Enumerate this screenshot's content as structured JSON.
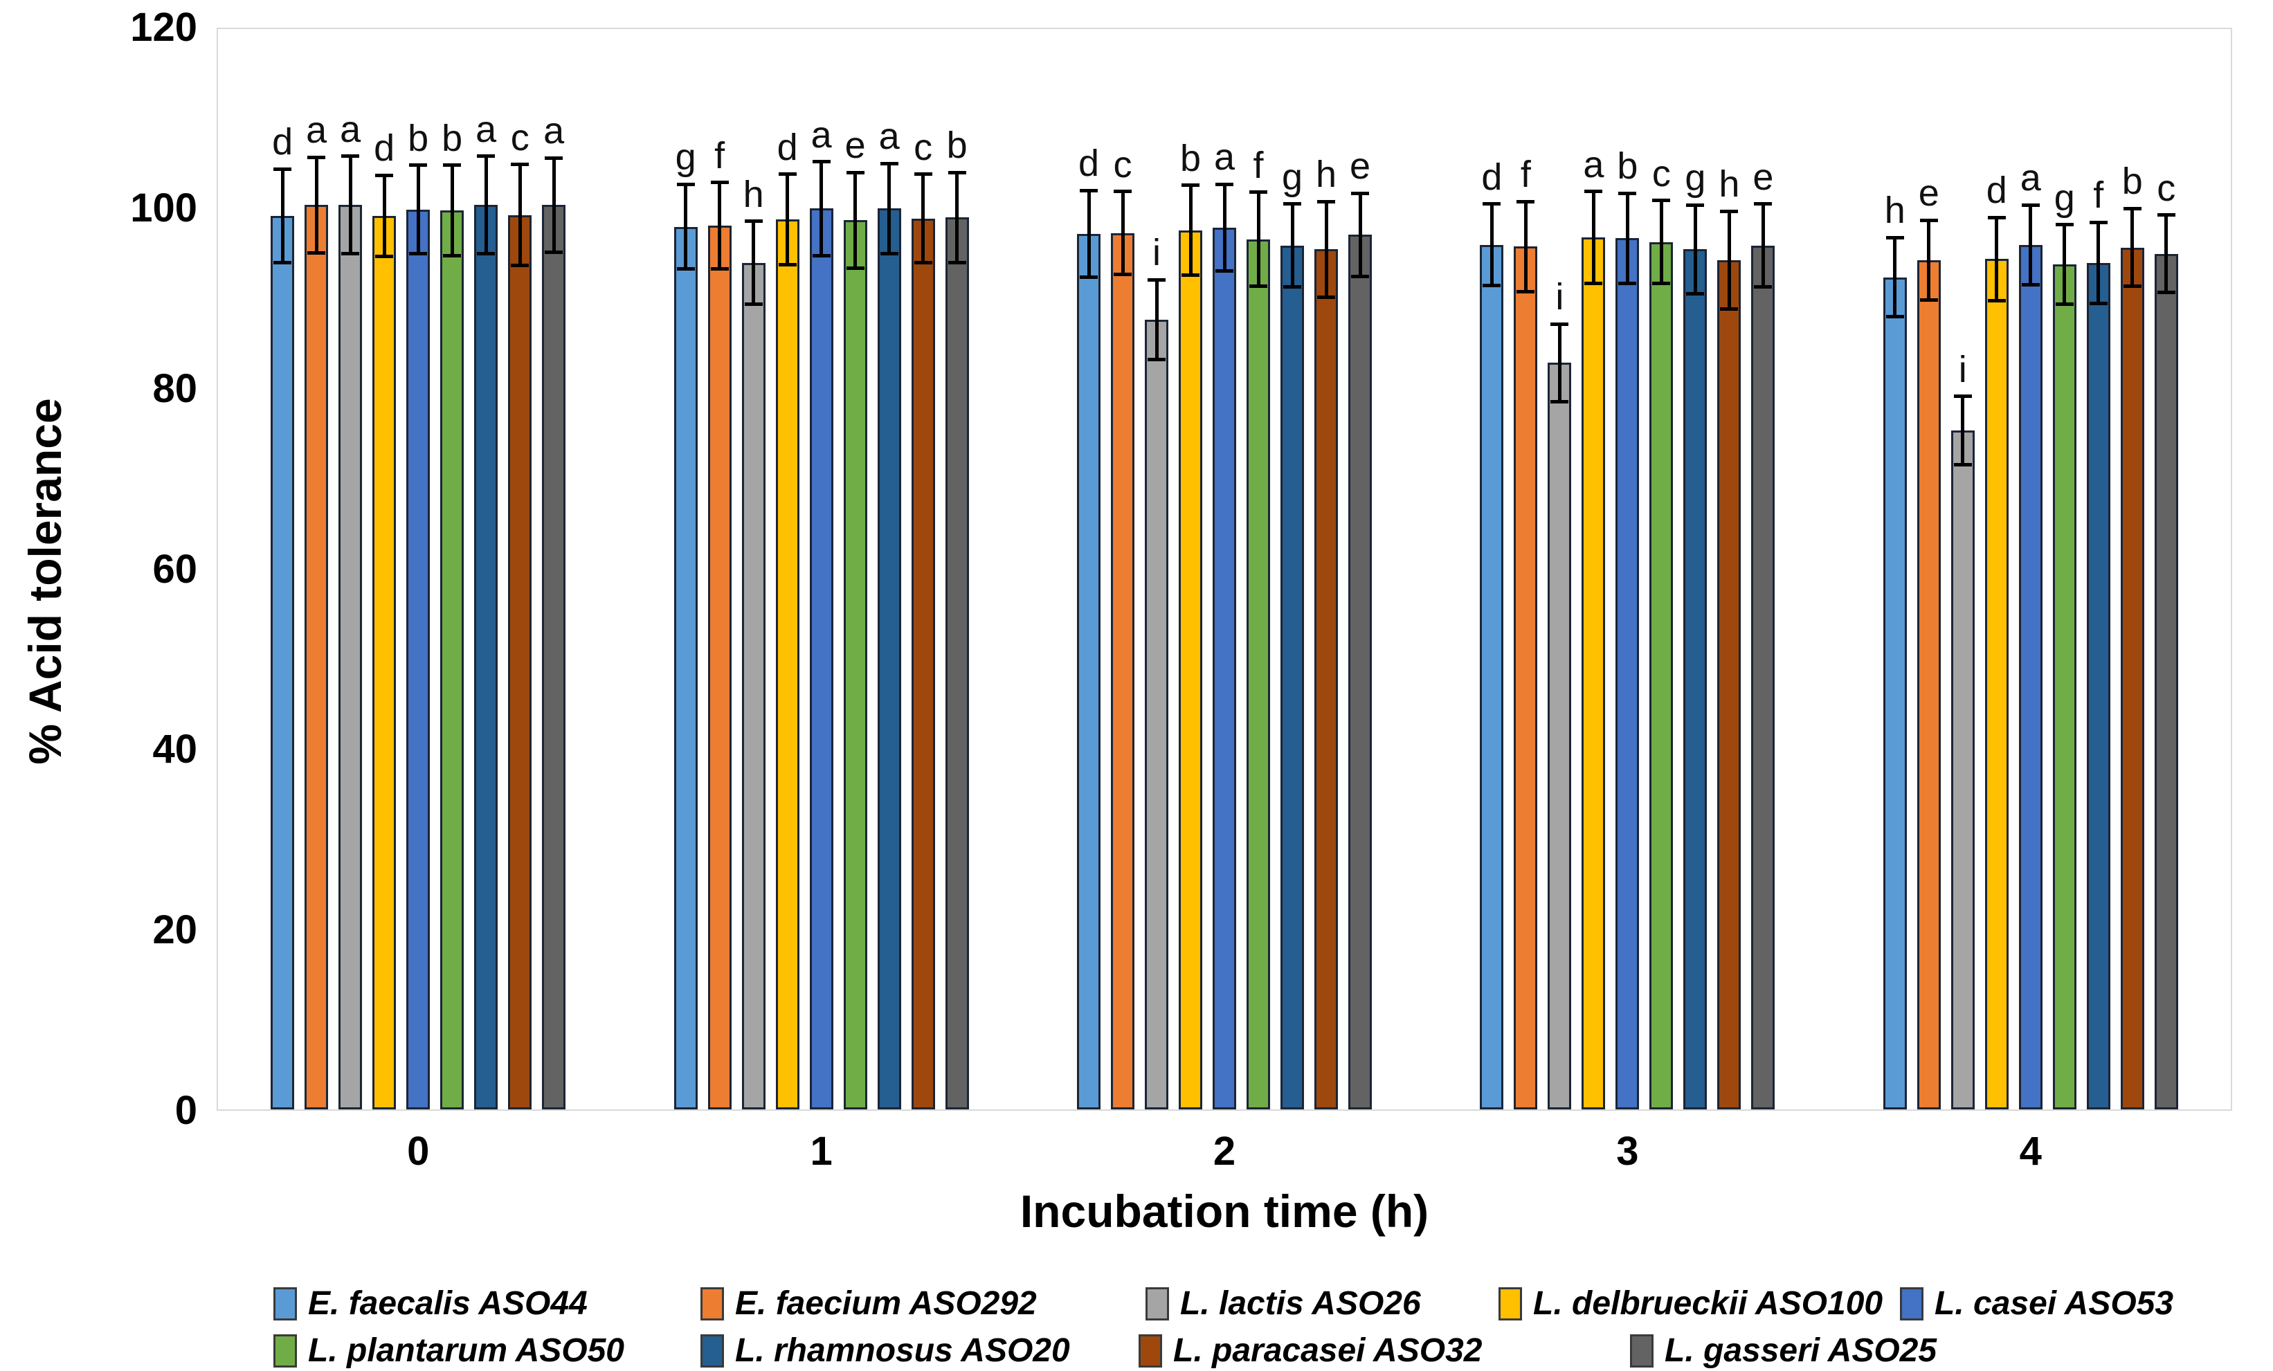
{
  "chart_data": {
    "type": "bar",
    "title": "",
    "xlabel": "Incubation time (h)",
    "ylabel": "% Acid tolerance",
    "ylim": [
      0,
      120
    ],
    "yticks": [
      0,
      20,
      40,
      60,
      80,
      100,
      120
    ],
    "categories": [
      "0",
      "1",
      "2",
      "3",
      "4"
    ],
    "grid": false,
    "legend_position": "bottom",
    "error_bars": true,
    "significance_letters": true,
    "series": [
      {
        "name": "E. faecalis ASO44",
        "color": "#5B9BD5",
        "values": [
          99.0,
          97.8,
          97.0,
          95.8,
          92.2
        ],
        "errors": [
          5.2,
          4.7,
          4.8,
          4.5,
          4.4
        ],
        "letters": [
          "d",
          "g",
          "d",
          "d",
          "h"
        ]
      },
      {
        "name": "E. faecium ASO292",
        "color": "#ED7D31",
        "values": [
          100.2,
          97.9,
          97.1,
          95.6,
          94.1
        ],
        "errors": [
          5.3,
          4.8,
          4.6,
          5.0,
          4.4
        ],
        "letters": [
          "a",
          "f",
          "c",
          "f",
          "e"
        ]
      },
      {
        "name": "L. lactis ASO26",
        "color": "#A5A5A5",
        "values": [
          100.2,
          93.8,
          87.5,
          82.7,
          75.2
        ],
        "errors": [
          5.4,
          4.6,
          4.4,
          4.3,
          3.8
        ],
        "letters": [
          "a",
          "h",
          "i",
          "i",
          "i"
        ]
      },
      {
        "name": "L. delbrueckii ASO100",
        "color": "#FFC000",
        "values": [
          99.0,
          98.6,
          97.4,
          96.6,
          94.2
        ],
        "errors": [
          4.5,
          5.0,
          5.0,
          5.1,
          4.6
        ],
        "letters": [
          "d",
          "d",
          "b",
          "a",
          "d"
        ]
      },
      {
        "name": "L. casei ASO53",
        "color": "#4472C4",
        "values": [
          99.7,
          99.8,
          97.7,
          96.5,
          95.8
        ],
        "errors": [
          4.9,
          5.2,
          4.8,
          5.0,
          4.4
        ],
        "letters": [
          "b",
          "a",
          "a",
          "b",
          "a"
        ]
      },
      {
        "name": "L. plantarum ASO50",
        "color": "#70AD47",
        "values": [
          99.6,
          98.5,
          96.4,
          96.1,
          93.6
        ],
        "errors": [
          5.0,
          5.3,
          5.2,
          4.6,
          4.4
        ],
        "letters": [
          "b",
          "e",
          "f",
          "c",
          "g"
        ]
      },
      {
        "name": "L. rhamnosus ASO20",
        "color": "#255E91",
        "values": [
          100.2,
          99.8,
          95.7,
          95.3,
          93.8
        ],
        "errors": [
          5.4,
          5.0,
          4.6,
          4.9,
          4.5
        ],
        "letters": [
          "a",
          "a",
          "g",
          "g",
          "f"
        ]
      },
      {
        "name": "L. paracasei ASO32",
        "color": "#9E480E",
        "values": [
          99.1,
          98.7,
          95.3,
          94.1,
          95.5
        ],
        "errors": [
          5.6,
          4.9,
          5.3,
          5.4,
          4.3
        ],
        "letters": [
          "c",
          "c",
          "h",
          "h",
          "b"
        ]
      },
      {
        "name": "L. gasseri ASO25",
        "color": "#636363",
        "values": [
          100.2,
          98.8,
          96.9,
          95.7,
          94.8
        ],
        "errors": [
          5.2,
          5.0,
          4.6,
          4.6,
          4.3
        ],
        "letters": [
          "a",
          "b",
          "e",
          "e",
          "c"
        ]
      }
    ]
  }
}
